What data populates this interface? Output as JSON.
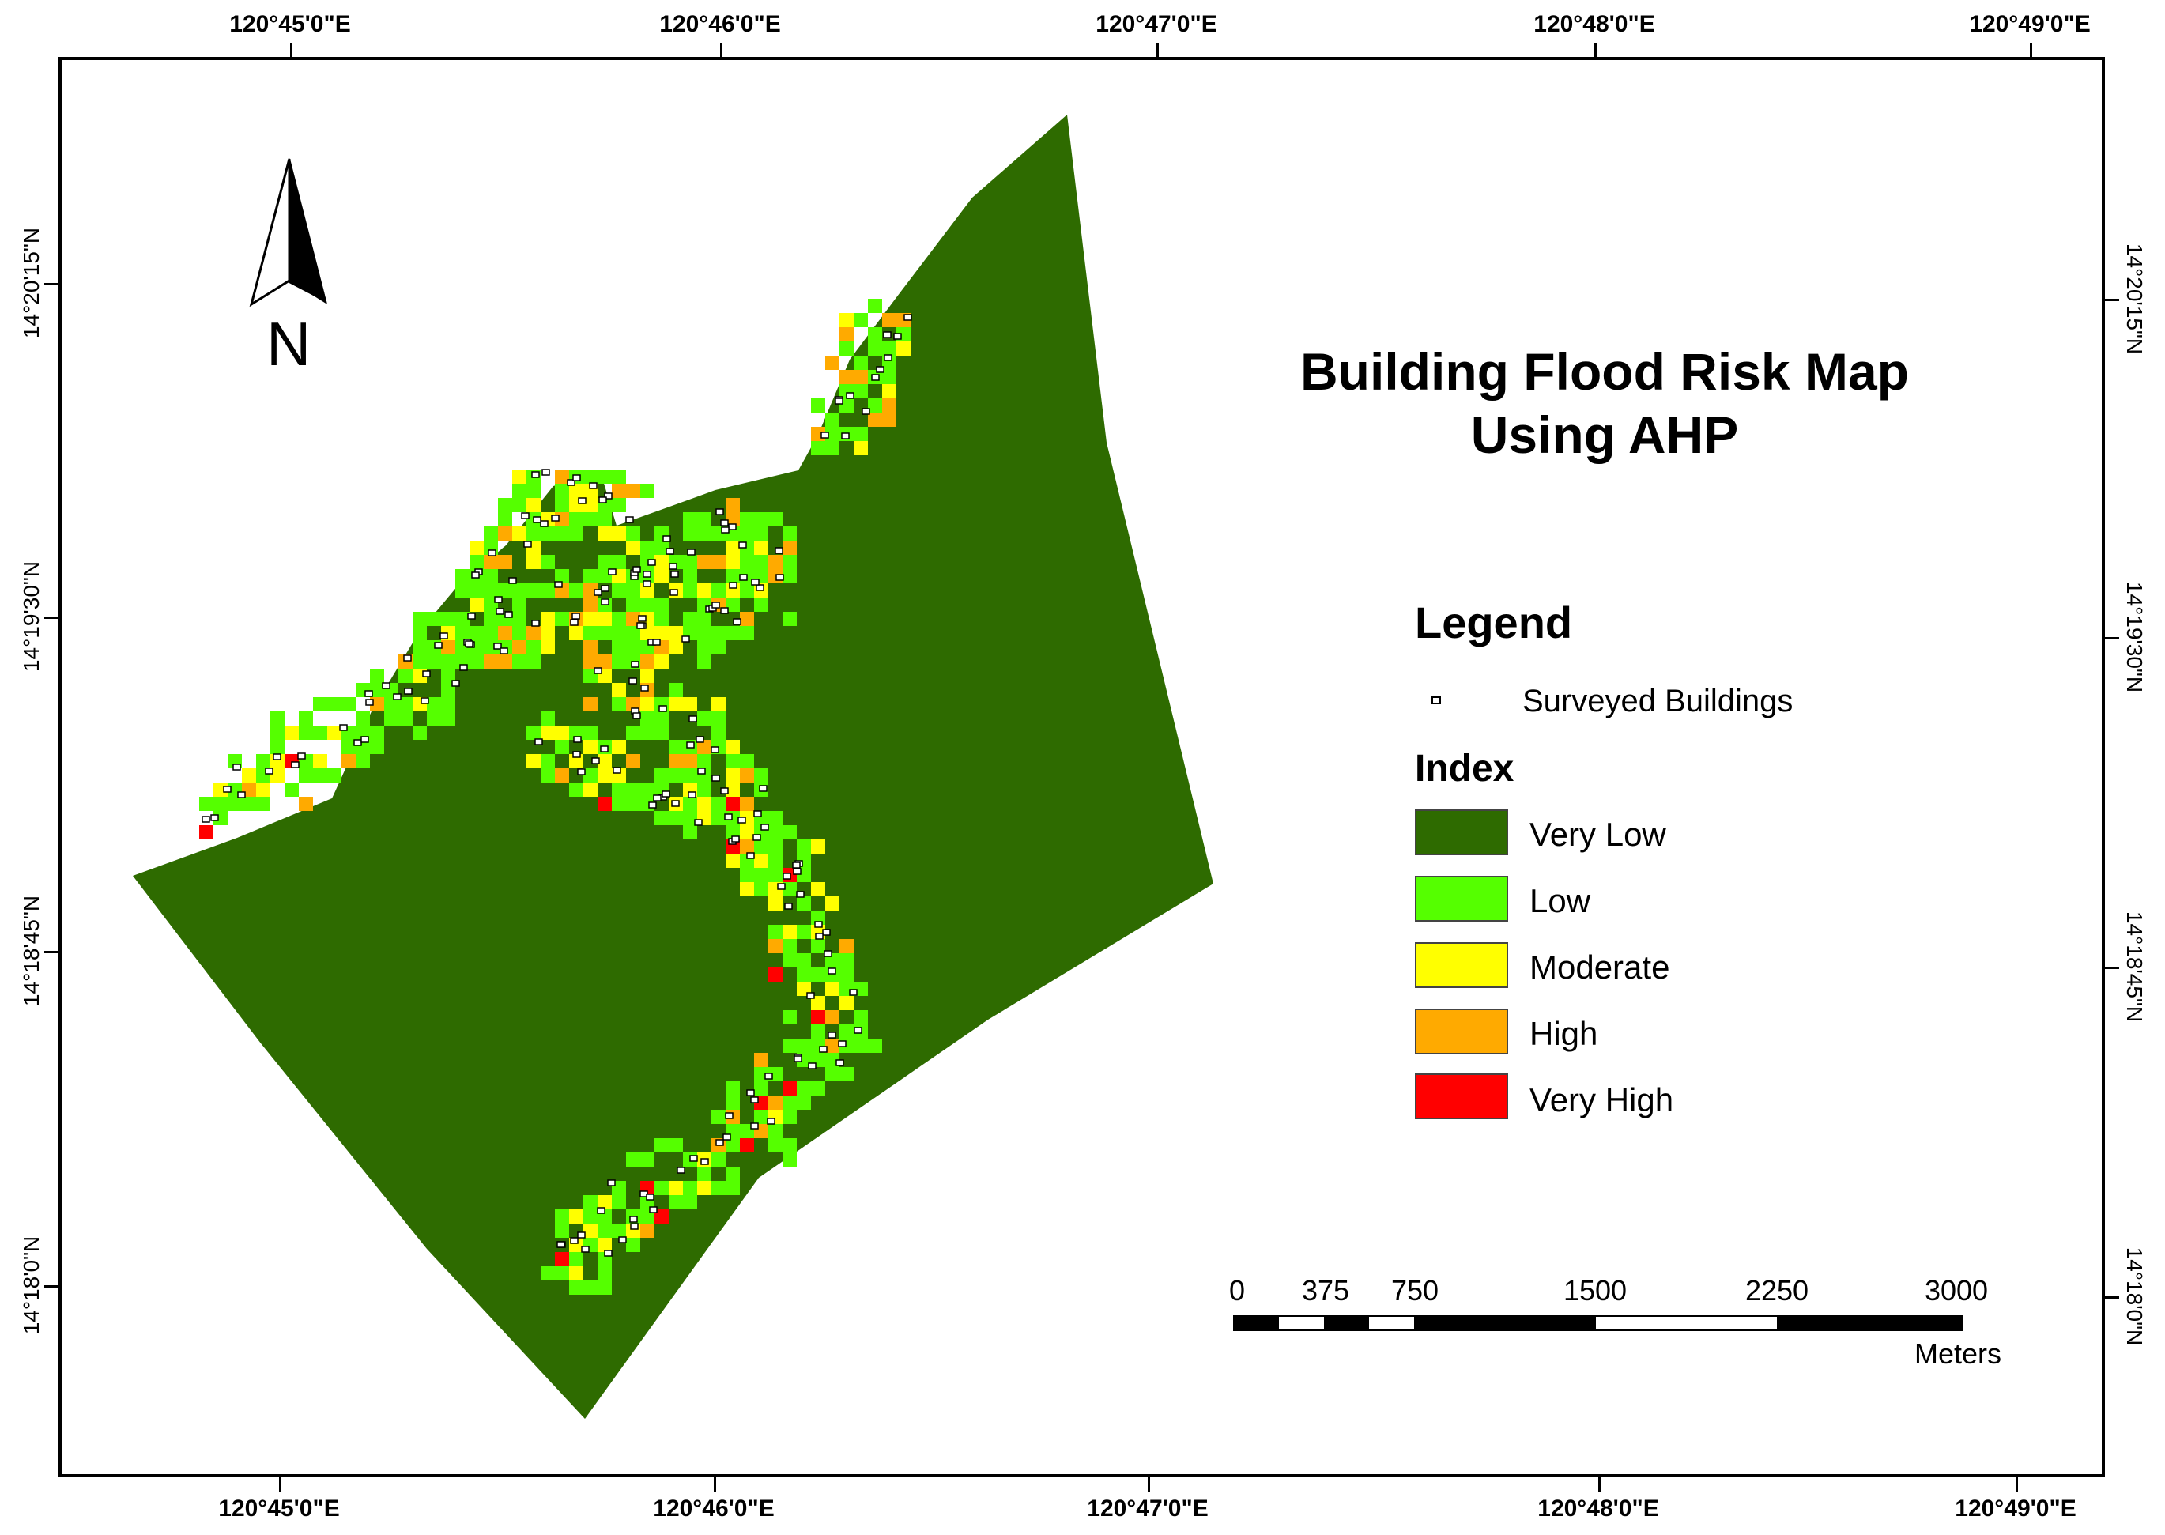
{
  "map": {
    "title_line1": "Building Flood Risk Map",
    "title_line2": "Using AHP",
    "north_label": "N",
    "legend": {
      "heading": "Legend",
      "buildings_label": "Surveyed Buildings",
      "index_heading": "Index",
      "classes": [
        {
          "label": "Very Low",
          "color": "#2e6b00"
        },
        {
          "label": "Low",
          "color": "#55ff00"
        },
        {
          "label": "Moderate",
          "color": "#ffff00"
        },
        {
          "label": "High",
          "color": "#ffaa00"
        },
        {
          "label": "Very High",
          "color": "#ff0000"
        }
      ]
    },
    "scale_bar": {
      "ticks": [
        "0",
        "375",
        "750",
        "1500",
        "2250",
        "3000"
      ],
      "unit": "Meters"
    },
    "graticule": {
      "top_labels": [
        "120°45'0\"E",
        "120°46'0\"E",
        "120°47'0\"E",
        "120°48'0\"E",
        "120°49'0\"E"
      ],
      "bottom_labels": [
        "120°45'0\"E",
        "120°46'0\"E",
        "120°47'0\"E",
        "120°48'0\"E",
        "120°49'0\"E"
      ],
      "left_labels": [
        "14°20'15\"N",
        "14°19'30\"N",
        "14°18'45\"N",
        "14°18'0\"N"
      ],
      "right_labels": [
        "14°20'15\"N",
        "14°19'30\"N",
        "14°18'45\"N",
        "14°18'0\"N"
      ]
    }
  }
}
